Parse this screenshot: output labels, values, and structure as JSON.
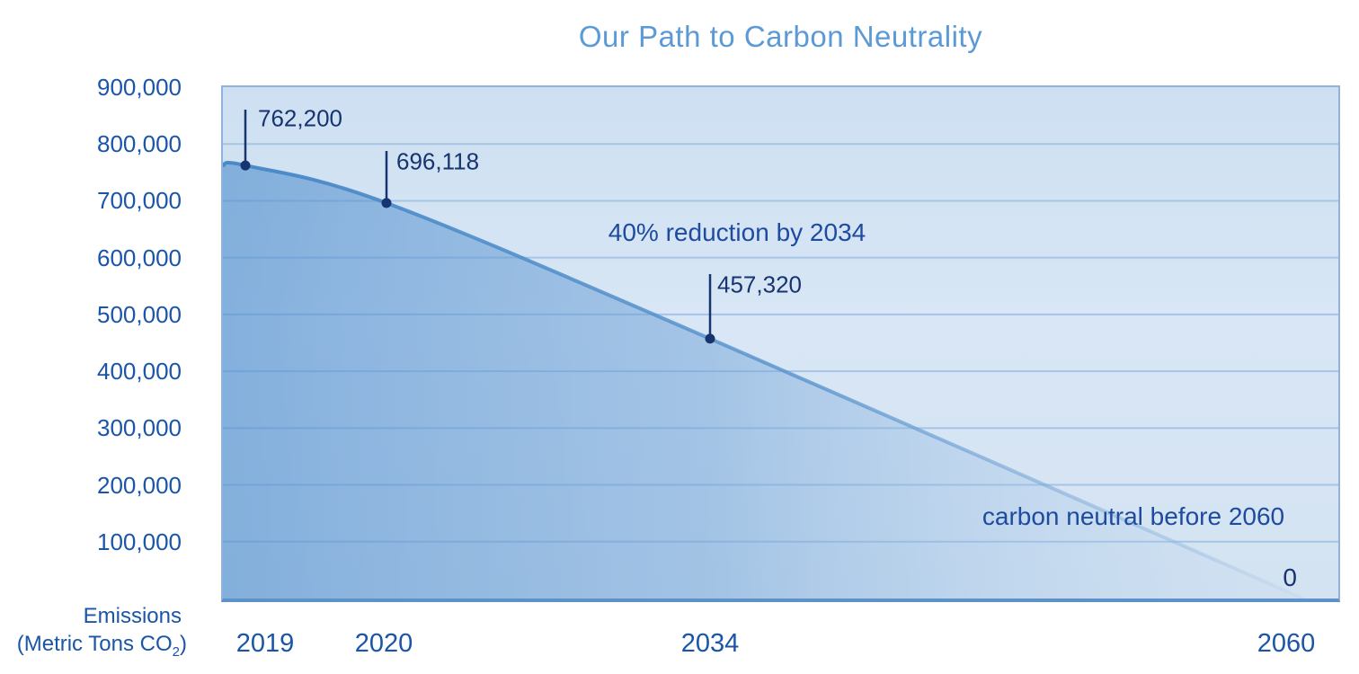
{
  "chart_data": {
    "type": "area",
    "title": "Our Path to Carbon Neutrality",
    "xlabel": "",
    "ylabel": "Emissions (Metric Tons CO2)",
    "ylim": [
      0,
      900000
    ],
    "grid": true,
    "legend": "none",
    "x_tick_labels": [
      "2019",
      "2020",
      "2034",
      "2060"
    ],
    "y_ticks": [
      "900,000",
      "800,000",
      "700,000",
      "600,000",
      "500,000",
      "400,000",
      "300,000",
      "200,000",
      "100,000"
    ],
    "y_tick_values": [
      900000,
      800000,
      700000,
      600000,
      500000,
      400000,
      300000,
      200000,
      100000
    ],
    "series": [
      {
        "name": "Emissions (Metric Tons CO2)",
        "x": [
          "2019",
          "2020",
          "2034",
          "2060"
        ],
        "values": [
          762200,
          696118,
          457320,
          0
        ],
        "point_labels": [
          "762,200",
          "696,118",
          "457,320",
          "0"
        ]
      }
    ],
    "annotations": [
      {
        "text": "40% reduction by 2034"
      },
      {
        "text": "carbon neutral before 2060"
      }
    ],
    "y_axis_caption": {
      "line1": "Emissions",
      "line2_pre": "(Metric Tons CO",
      "line2_sub": "2",
      "line2_post": ")"
    }
  },
  "colors": {
    "title": "#5b9ad6",
    "axis_labels": "#1a55a8",
    "value_labels": "#16346f",
    "annotation": "#1e4b9e",
    "gridline": "#a6c4e5",
    "plot_border": "#8fb3dc",
    "plot_border_bottom": "#5d91c9",
    "callout": "#16346f",
    "area_fill_start": "#4d8ccd",
    "area_stroke_start": "#4486c6"
  }
}
